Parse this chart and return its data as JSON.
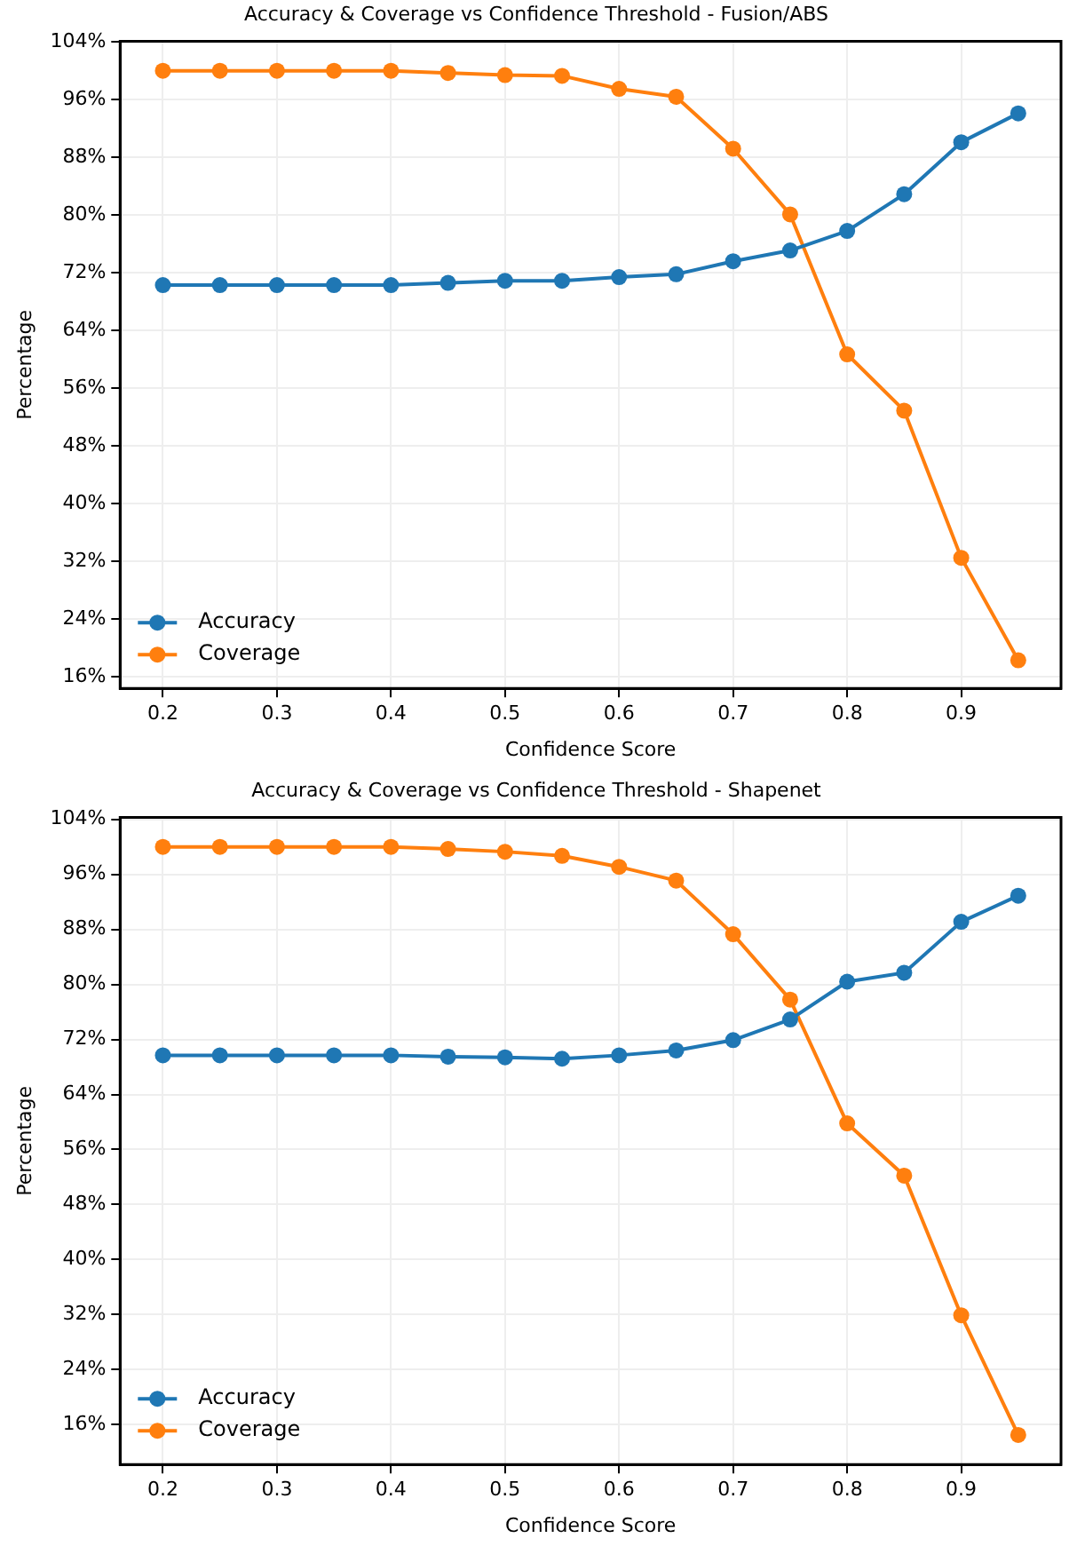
{
  "chart_data": [
    {
      "type": "line",
      "title": "Accuracy & Coverage vs Confidence Threshold - Fusion/ABS",
      "xlabel": "Confidence Score",
      "ylabel": "Percentage",
      "x": [
        0.2,
        0.25,
        0.3,
        0.35,
        0.4,
        0.45,
        0.5,
        0.55,
        0.6,
        0.65,
        0.7,
        0.75,
        0.8,
        0.85,
        0.9,
        0.95
      ],
      "series": [
        {
          "name": "Accuracy",
          "color": "#1f77b4",
          "values": [
            70.3,
            70.3,
            70.3,
            70.3,
            70.3,
            70.6,
            70.9,
            70.9,
            71.4,
            71.8,
            73.6,
            75.1,
            77.8,
            82.9,
            90.1,
            94.1
          ]
        },
        {
          "name": "Coverage",
          "color": "#ff7f0e",
          "values": [
            100,
            100,
            100,
            100,
            100,
            99.7,
            99.4,
            99.3,
            97.5,
            96.4,
            89.2,
            80.1,
            60.7,
            52.9,
            32.5,
            18.3
          ]
        }
      ],
      "xlim": [
        0.1625,
        0.9875
      ],
      "xticks": [
        0.2,
        0.3,
        0.4,
        0.5,
        0.6,
        0.7,
        0.8,
        0.9
      ],
      "ylim": [
        14.4,
        104.1
      ],
      "yticks": [
        {
          "value": 16,
          "label": "16%"
        },
        {
          "value": 24,
          "label": "24%"
        },
        {
          "value": 32,
          "label": "32%"
        },
        {
          "value": 40,
          "label": "40%"
        },
        {
          "value": 48,
          "label": "48%"
        },
        {
          "value": 56,
          "label": "56%"
        },
        {
          "value": 64,
          "label": "64%"
        },
        {
          "value": 72,
          "label": "72%"
        },
        {
          "value": 80,
          "label": "80%"
        },
        {
          "value": 88,
          "label": "88%"
        },
        {
          "value": 96,
          "label": "96%"
        },
        {
          "value": 104,
          "label": "104%"
        }
      ],
      "grid": true,
      "legend": "bottom left",
      "marker": "circle",
      "line_style": "solid"
    },
    {
      "type": "line",
      "title": "Accuracy & Coverage vs Confidence Threshold - Shapenet",
      "xlabel": "Confidence Score",
      "ylabel": "Percentage",
      "x": [
        0.2,
        0.25,
        0.3,
        0.35,
        0.4,
        0.45,
        0.5,
        0.55,
        0.6,
        0.65,
        0.7,
        0.75,
        0.8,
        0.85,
        0.9,
        0.95
      ],
      "series": [
        {
          "name": "Accuracy",
          "color": "#1f77b4",
          "values": [
            69.7,
            69.7,
            69.7,
            69.7,
            69.7,
            69.5,
            69.4,
            69.2,
            69.7,
            70.4,
            71.9,
            74.9,
            80.4,
            81.7,
            89.1,
            92.9
          ]
        },
        {
          "name": "Coverage",
          "color": "#ff7f0e",
          "values": [
            100,
            100,
            100,
            100,
            100,
            99.7,
            99.3,
            98.7,
            97.1,
            95.1,
            87.3,
            77.8,
            59.8,
            52.2,
            31.9,
            14.5
          ]
        }
      ],
      "xlim": [
        0.1625,
        0.9875
      ],
      "xticks": [
        0.2,
        0.3,
        0.4,
        0.5,
        0.6,
        0.7,
        0.8,
        0.9
      ],
      "ylim": [
        10.2,
        104.3
      ],
      "yticks": [
        {
          "value": 16,
          "label": "16%"
        },
        {
          "value": 24,
          "label": "24%"
        },
        {
          "value": 32,
          "label": "32%"
        },
        {
          "value": 40,
          "label": "40%"
        },
        {
          "value": 48,
          "label": "48%"
        },
        {
          "value": 56,
          "label": "56%"
        },
        {
          "value": 64,
          "label": "64%"
        },
        {
          "value": 72,
          "label": "72%"
        },
        {
          "value": 80,
          "label": "80%"
        },
        {
          "value": 88,
          "label": "88%"
        },
        {
          "value": 96,
          "label": "96%"
        },
        {
          "value": 104,
          "label": "104%"
        }
      ],
      "grid": true,
      "legend": "bottom left",
      "marker": "circle",
      "line_style": "solid"
    }
  ]
}
